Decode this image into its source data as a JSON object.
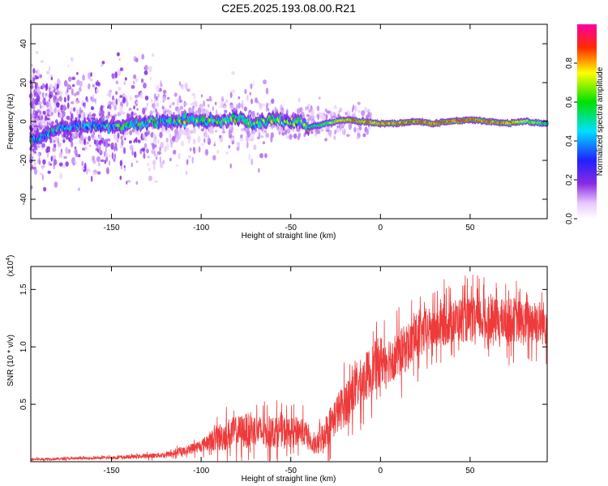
{
  "title": "C2E5.2025.193.08.00.R21",
  "colors": {
    "snr_line": "#ee3a3a",
    "spectrogram_background": "#ffffff"
  },
  "chart_data": [
    {
      "type": "heatmap",
      "id": "spectrogram",
      "title": "C2E5.2025.193.08.00.R21",
      "xlabel": "Height of straight line (km)",
      "ylabel": "Frequency (Hz)",
      "xlim": [
        -195,
        93
      ],
      "ylim": [
        -50,
        50
      ],
      "x_ticks": [
        -150,
        -100,
        -50,
        0,
        50
      ],
      "x_tick_labels": [
        "-150",
        "-100",
        "-50",
        "0",
        "50"
      ],
      "y_ticks": [
        -40,
        -20,
        0,
        20,
        40
      ],
      "y_tick_labels": [
        "-40",
        "-20",
        "0",
        "20",
        "40"
      ],
      "colorbar": {
        "label": "Normalized spectral amplitude",
        "range": [
          0,
          1
        ],
        "ticks": [
          0.0,
          0.2,
          0.4,
          0.6,
          0.8
        ],
        "tick_labels": [
          "0.0",
          "0.2",
          "0.4",
          "0.6",
          "0.8"
        ],
        "colormap": "rainbow (white-magenta-blue-cyan-green-yellow-red)"
      },
      "ridge": {
        "x": [
          -195,
          -180,
          -165,
          -150,
          -135,
          -120,
          -105,
          -90,
          -80,
          -70,
          -60,
          -50,
          -45,
          -40,
          -30,
          -20,
          -10,
          0,
          10,
          20,
          30,
          40,
          50,
          60,
          70,
          80,
          93
        ],
        "center_freq": [
          -10,
          -4,
          -2,
          -3,
          -1,
          0,
          1,
          0,
          2,
          -1,
          1,
          0,
          0,
          -3,
          -1,
          1,
          0,
          -1,
          -1,
          0,
          -1,
          0,
          1,
          0,
          -1,
          0,
          -1
        ],
        "peak_amplitude": [
          0.35,
          0.3,
          0.3,
          0.4,
          0.4,
          0.4,
          0.45,
          0.45,
          0.45,
          0.45,
          0.5,
          0.5,
          0.45,
          0.55,
          0.65,
          0.85,
          0.85,
          0.85,
          0.85,
          0.85,
          0.9,
          0.9,
          0.9,
          0.85,
          0.85,
          0.75,
          0.6
        ]
      }
    },
    {
      "type": "line",
      "id": "snr",
      "xlabel": "Height of straight line (km)",
      "ylabel": "SNR (10 * v/v)",
      "y_multiplier_label": "(x10",
      "y_multiplier_exponent": "4",
      "y_multiplier_close": ")",
      "xlim": [
        -195,
        93
      ],
      "ylim": [
        0,
        17000
      ],
      "x_ticks": [
        -150,
        -100,
        -50,
        0,
        50
      ],
      "x_tick_labels": [
        "-150",
        "-100",
        "-50",
        "0",
        "50"
      ],
      "y_ticks": [
        5000,
        10000,
        15000
      ],
      "y_tick_labels": [
        "0.5",
        "1.0",
        "1.5"
      ],
      "series": [
        {
          "x": [
            -195,
            -180,
            -165,
            -150,
            -135,
            -120,
            -110,
            -100,
            -95,
            -90,
            -85,
            -80,
            -75,
            -70,
            -65,
            -60,
            -55,
            -50,
            -45,
            -40,
            -38,
            -35,
            -30,
            -25,
            -20,
            -15,
            -10,
            -5,
            0,
            5,
            10,
            15,
            20,
            25,
            30,
            35,
            40,
            45,
            50,
            55,
            60,
            65,
            70,
            75,
            80,
            85,
            93
          ],
          "values": [
            200,
            250,
            300,
            350,
            450,
            600,
            900,
            1400,
            1800,
            2100,
            2400,
            2600,
            2700,
            2800,
            2500,
            2600,
            2700,
            2500,
            2800,
            2200,
            1200,
            1500,
            2800,
            4000,
            5000,
            6200,
            7000,
            8000,
            8800,
            9000,
            9300,
            10000,
            10800,
            11300,
            11600,
            12000,
            12200,
            12400,
            12300,
            12500,
            12100,
            12300,
            12200,
            12400,
            12000,
            12300,
            12000
          ],
          "noise_amplitude": [
            150,
            150,
            150,
            200,
            250,
            350,
            500,
            800,
            1200,
            1800,
            2000,
            2000,
            2200,
            2000,
            2000,
            2000,
            2000,
            1800,
            1800,
            1500,
            800,
            1500,
            2200,
            2500,
            2800,
            3000,
            3000,
            3200,
            3200,
            3000,
            3000,
            3000,
            3000,
            2800,
            2800,
            2800,
            2800,
            2800,
            2800,
            2800,
            2800,
            2800,
            2800,
            2800,
            2800,
            2800,
            2800
          ]
        }
      ]
    }
  ]
}
